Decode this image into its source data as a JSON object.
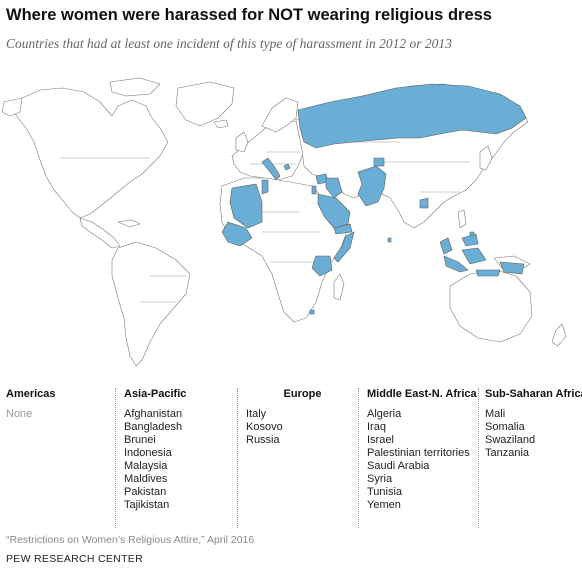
{
  "header": {
    "title": "Where women were harassed for NOT wearing religious dress",
    "subtitle": "Countries that had at least one incident of this type of harassment in 2012 or 2013"
  },
  "map": {
    "highlight_color": "#6aaed6",
    "land_color": "#ffffff",
    "border_color": "#7a7a7a",
    "highlighted_countries": [
      "Mali",
      "Algeria",
      "Tunisia",
      "Italy",
      "Kosovo",
      "Russia",
      "Syria",
      "Iraq",
      "Israel",
      "Palestinian territories",
      "Saudi Arabia",
      "Yemen",
      "Somalia",
      "Tanzania",
      "Swaziland",
      "Afghanistan",
      "Pakistan",
      "Tajikistan",
      "Bangladesh",
      "Maldives",
      "Malaysia",
      "Brunei",
      "Indonesia"
    ]
  },
  "regions": [
    {
      "name": "Americas",
      "countries": [
        "None"
      ]
    },
    {
      "name": "Asia-Pacific",
      "countries": [
        "Afghanistan",
        "Bangladesh",
        "Brunei",
        "Indonesia",
        "Malaysia",
        "Maldives",
        "Pakistan",
        "Tajikistan"
      ]
    },
    {
      "name": "Europe",
      "countries": [
        "Italy",
        "Kosovo",
        "Russia"
      ]
    },
    {
      "name": "Middle East-N. Africa",
      "countries": [
        "Algeria",
        "Iraq",
        "Israel",
        "Palestinian territories",
        "Saudi Arabia",
        "Syria",
        "Tunisia",
        "Yemen"
      ]
    },
    {
      "name": "Sub-Saharan Africa",
      "countries": [
        "Mali",
        "Somalia",
        "Swaziland",
        "Tanzania"
      ]
    }
  ],
  "footer": {
    "source": "“Restrictions on Women’s Religious Attire,” April 2016",
    "credit": "PEW RESEARCH CENTER"
  }
}
